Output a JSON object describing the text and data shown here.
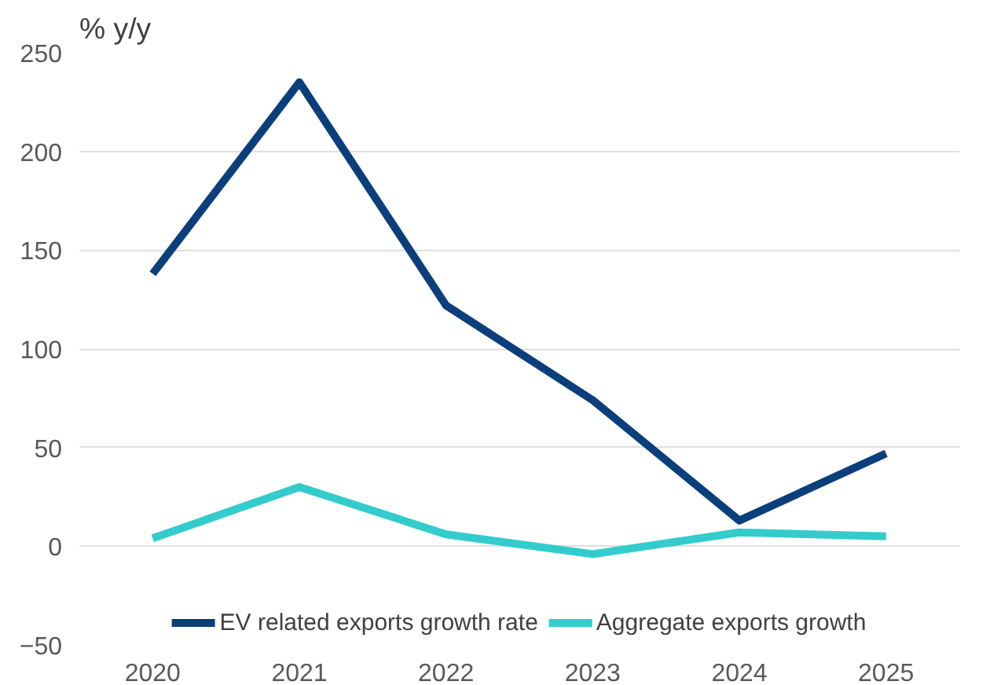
{
  "chart_data": {
    "type": "line",
    "ylabel": "% y/y",
    "categories": [
      "2020",
      "2021",
      "2022",
      "2023",
      "2024",
      "2025"
    ],
    "series": [
      {
        "name": "EV related exports growth rate",
        "color": "#0b3f7c",
        "values": [
          138,
          235,
          122,
          74,
          13,
          47
        ]
      },
      {
        "name": "Aggregate exports growth",
        "color": "#33cccc",
        "values": [
          4,
          30,
          6,
          -4,
          7,
          5
        ]
      }
    ],
    "ylim": [
      -50,
      250
    ],
    "yticks": [
      -50,
      0,
      50,
      100,
      150,
      200,
      250
    ],
    "grid": "y",
    "legend": "bottom",
    "marker": "none",
    "line_style": "solid"
  }
}
